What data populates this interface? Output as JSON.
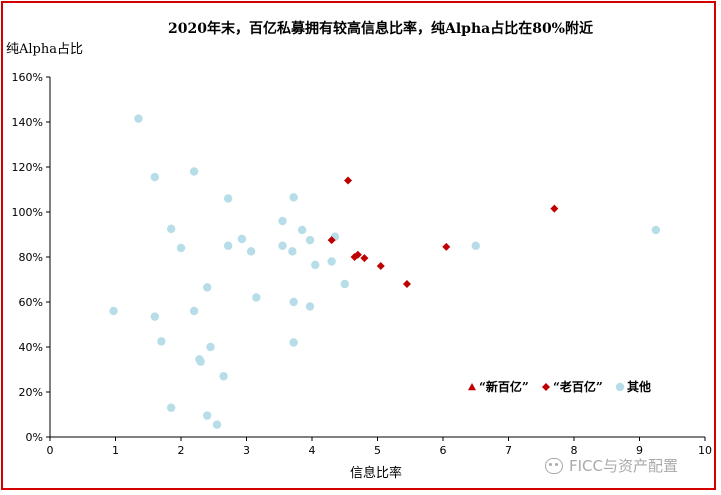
{
  "chart_data": {
    "type": "scatter",
    "title": "2020年末，百亿私募拥有较高信息比率，纯Alpha占比在80%附近",
    "ylabel": "纯Alpha占比",
    "xlabel": "信息比率",
    "xlim": [
      0,
      10
    ],
    "ylim": [
      0,
      1.6
    ],
    "x_ticks": [
      "0",
      "1",
      "2",
      "3",
      "4",
      "5",
      "6",
      "7",
      "8",
      "9",
      "10"
    ],
    "y_ticks": [
      "0%",
      "20%",
      "40%",
      "60%",
      "80%",
      "100%",
      "120%",
      "140%",
      "160%"
    ],
    "grid": false,
    "legend_position": "bottom-right",
    "series": [
      {
        "name": "“新百亿”",
        "marker": "triangle",
        "color": "#c00000",
        "points": []
      },
      {
        "name": "“老百亿”",
        "marker": "diamond",
        "color": "#c00000",
        "points": [
          [
            4.55,
            1.14
          ],
          [
            7.7,
            1.015
          ],
          [
            4.3,
            0.875
          ],
          [
            6.05,
            0.845
          ],
          [
            4.65,
            0.8
          ],
          [
            4.7,
            0.81
          ],
          [
            4.8,
            0.795
          ],
          [
            5.05,
            0.76
          ],
          [
            5.45,
            0.68
          ]
        ]
      },
      {
        "name": "其他",
        "marker": "circle",
        "color": "#b7dde8",
        "points": [
          [
            1.35,
            1.415
          ],
          [
            1.6,
            1.155
          ],
          [
            2.2,
            1.18
          ],
          [
            1.85,
            0.925
          ],
          [
            2.0,
            0.84
          ],
          [
            2.72,
            1.06
          ],
          [
            2.72,
            0.85
          ],
          [
            2.93,
            0.88
          ],
          [
            3.07,
            0.825
          ],
          [
            3.55,
            0.96
          ],
          [
            3.72,
            1.065
          ],
          [
            3.55,
            0.85
          ],
          [
            3.7,
            0.825
          ],
          [
            3.85,
            0.92
          ],
          [
            3.97,
            0.875
          ],
          [
            4.05,
            0.765
          ],
          [
            4.3,
            0.78
          ],
          [
            4.35,
            0.89
          ],
          [
            4.5,
            0.68
          ],
          [
            6.5,
            0.85
          ],
          [
            9.25,
            0.92
          ],
          [
            3.15,
            0.62
          ],
          [
            3.72,
            0.6
          ],
          [
            3.97,
            0.58
          ],
          [
            0.97,
            0.56
          ],
          [
            1.6,
            0.535
          ],
          [
            2.2,
            0.56
          ],
          [
            2.4,
            0.665
          ],
          [
            1.7,
            0.425
          ],
          [
            2.45,
            0.4
          ],
          [
            3.72,
            0.42
          ],
          [
            2.28,
            0.345
          ],
          [
            2.3,
            0.335
          ],
          [
            2.65,
            0.27
          ],
          [
            1.85,
            0.13
          ],
          [
            2.4,
            0.095
          ],
          [
            2.55,
            0.055
          ]
        ]
      }
    ]
  },
  "watermark": "FICC与资产配置"
}
